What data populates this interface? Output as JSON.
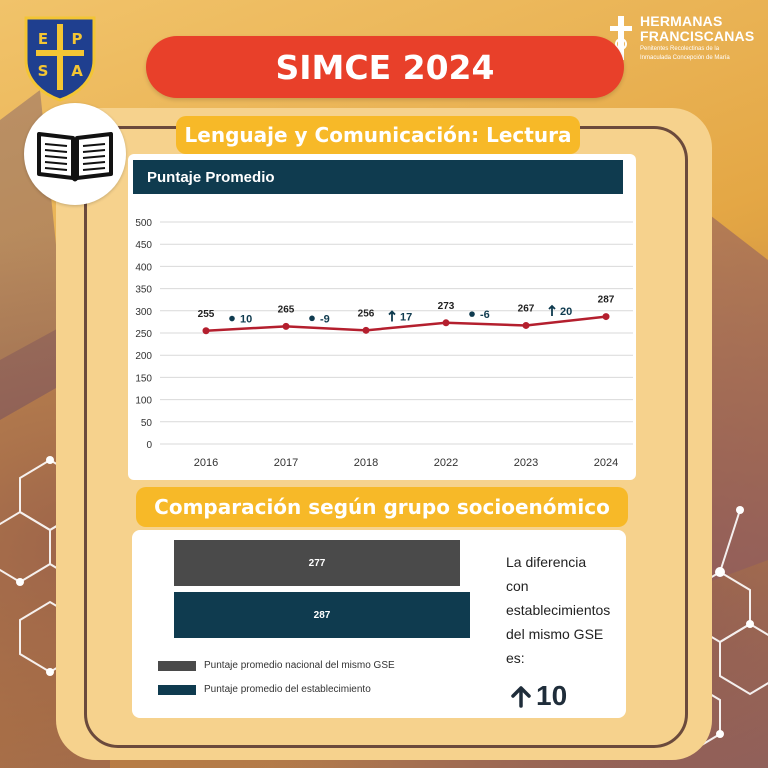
{
  "header": {
    "title": "SIMCE 2024",
    "crest_letters": [
      "E",
      "P",
      "S",
      "A"
    ],
    "brand_name_line1": "HERMANAS",
    "brand_name_line2": "FRANCISCANAS",
    "brand_sub_line1": "Penitentes Recolectinas de la",
    "brand_sub_line2": "Inmaculada Concepción de María"
  },
  "section1": {
    "title": "Lenguaje y Comunicación: Lectura"
  },
  "chart_header": "Puntaje Promedio",
  "chart_data": {
    "type": "line",
    "categories": [
      "2016",
      "2017",
      "2018",
      "2022",
      "2023",
      "2024"
    ],
    "series": [
      {
        "values": [
          255,
          265,
          256,
          273,
          267,
          287
        ]
      }
    ],
    "changes": [
      {
        "direction": "same",
        "label": "10"
      },
      {
        "direction": "same",
        "label": "-9"
      },
      {
        "direction": "up",
        "label": "17"
      },
      {
        "direction": "same",
        "label": "-6"
      },
      {
        "direction": "up",
        "label": "20"
      }
    ],
    "ylim": [
      0,
      500
    ],
    "yticks": [
      0,
      50,
      100,
      150,
      200,
      250,
      300,
      350,
      400,
      450,
      500
    ],
    "grid": true,
    "colors": {
      "line": "#b41f2e",
      "header": "#0f3b4f"
    }
  },
  "section2": {
    "title": "Comparación según grupo socioenómico",
    "bars": [
      {
        "value": "277",
        "color": "#4a4a4a",
        "fraction": 0.965,
        "legend": "Puntaje promedio nacional del mismo GSE"
      },
      {
        "value": "287",
        "color": "#0f3b4f",
        "fraction": 1.0,
        "legend": "Puntaje promedio del establecimiento"
      }
    ],
    "diff_lines": [
      "La diferencia",
      "con",
      "establecimientos",
      "del mismo GSE",
      "es:"
    ],
    "diff_value": "10",
    "diff_icon": "arrow-up-icon"
  },
  "colors": {
    "title_pill": "#e8402a",
    "section_pill": "#f7b928",
    "frame": "#f6d28d",
    "frame_border": "#6b4a3c"
  }
}
